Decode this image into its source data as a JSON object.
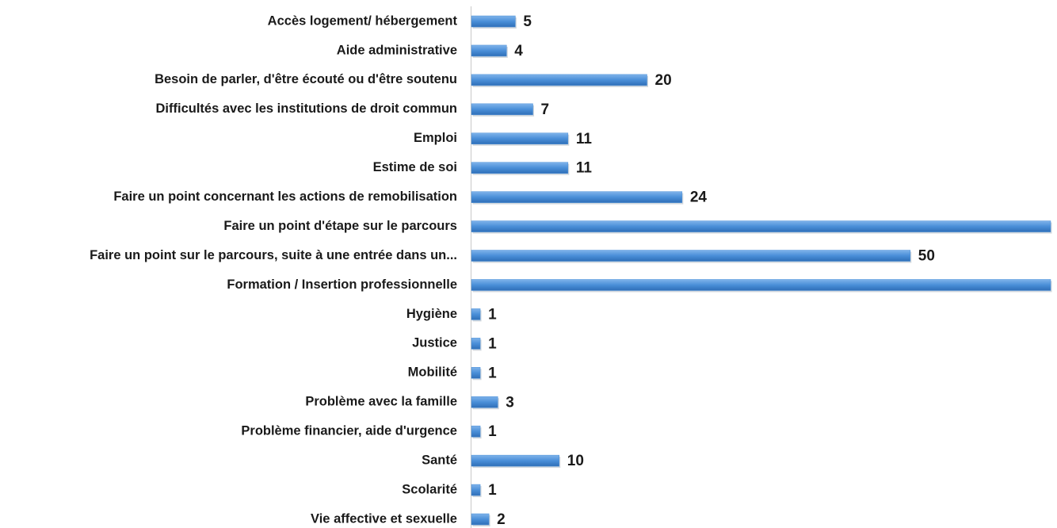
{
  "chart_data": {
    "type": "bar",
    "orientation": "horizontal",
    "categories": [
      "Accès logement/ hébergement",
      "Aide administrative",
      "Besoin de parler, d'être écouté ou d'être soutenu",
      "Difficultés avec les institutions de droit commun",
      "Emploi",
      "Estime de soi",
      "Faire un point concernant les actions de remobilisation",
      "Faire un point d'étape sur le parcours",
      "Faire un point sur le parcours, suite à une entrée dans un...",
      "Formation / Insertion professionnelle",
      "Hygiène",
      "Justice",
      "Mobilité",
      "Problème avec la famille",
      "Problème financier, aide d'urgence",
      "Santé",
      "Scolarité",
      "Vie affective et sexuelle"
    ],
    "values": [
      5,
      4,
      20,
      7,
      11,
      11,
      24,
      66,
      50,
      66,
      1,
      1,
      1,
      3,
      1,
      10,
      1,
      2
    ],
    "color": "#4a8fd8"
  }
}
